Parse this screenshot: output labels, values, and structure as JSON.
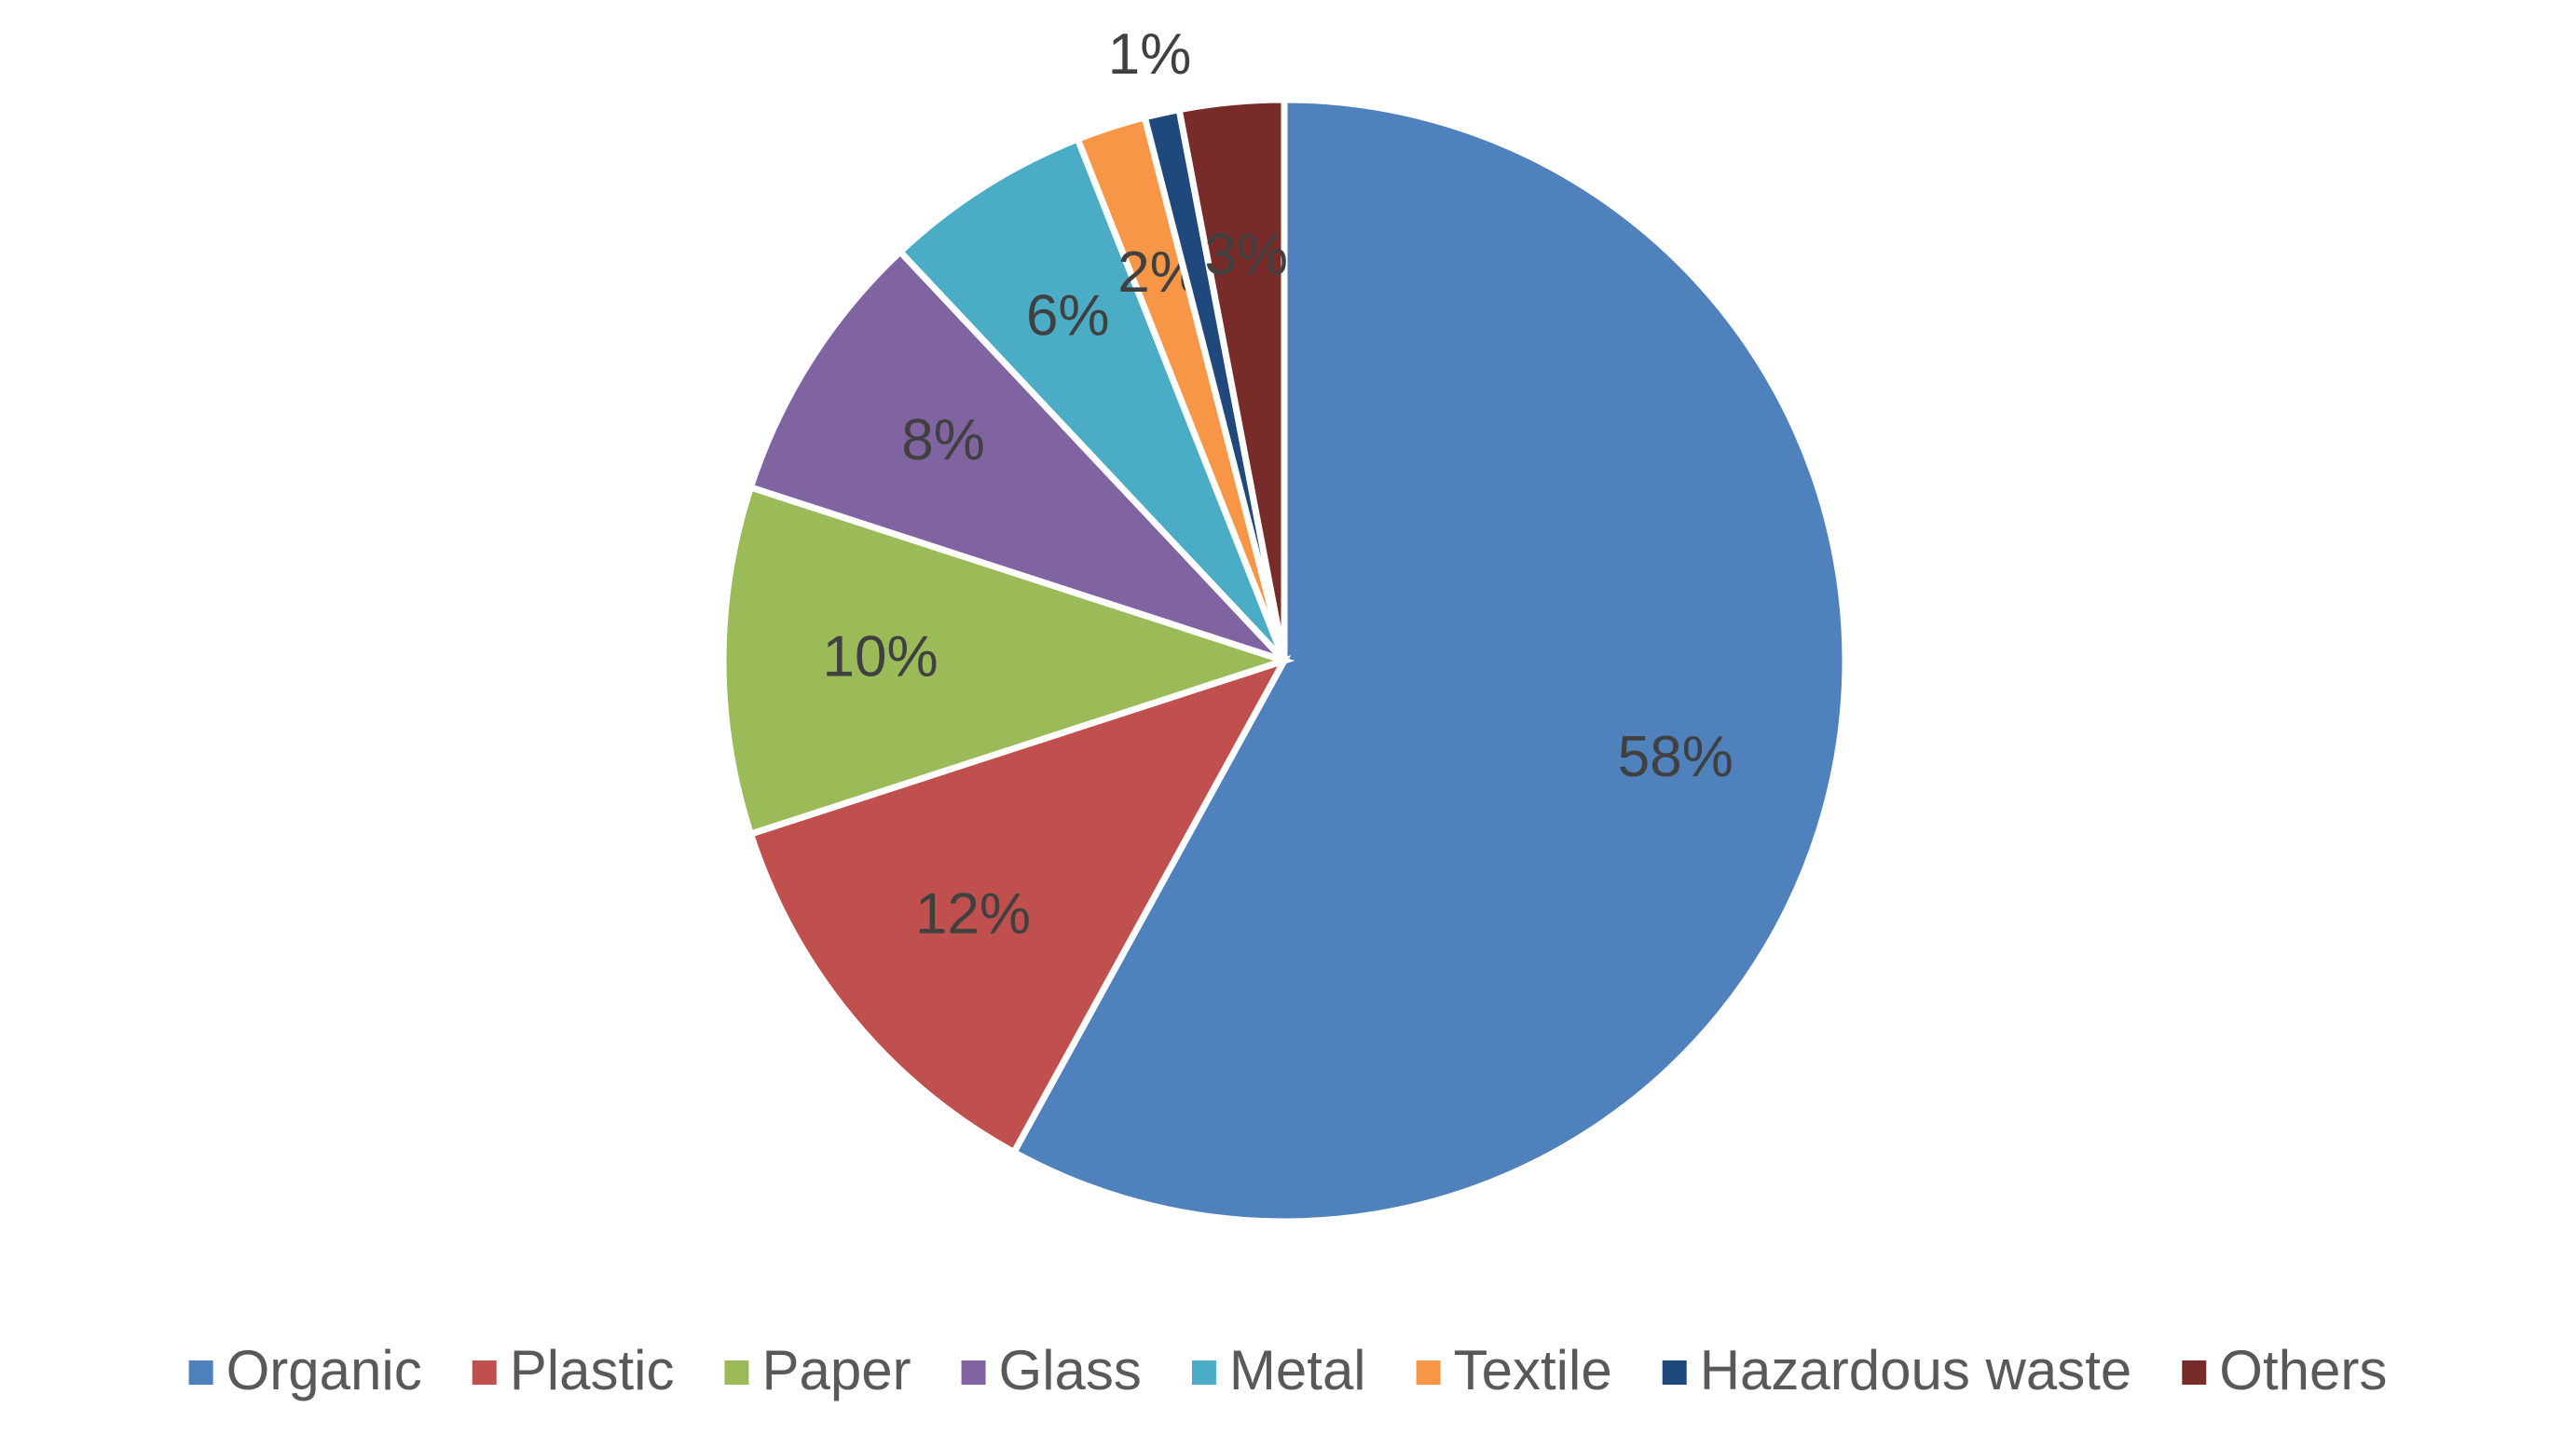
{
  "chart_data": {
    "type": "pie",
    "categories": [
      "Organic",
      "Plastic",
      "Paper",
      "Glass",
      "Metal",
      "Textile",
      "Hazardous waste",
      "Others"
    ],
    "values": [
      58,
      12,
      10,
      8,
      6,
      2,
      1,
      3
    ],
    "value_labels": [
      "58%",
      "12%",
      "10%",
      "8%",
      "6%",
      "2%",
      "1%",
      "3%"
    ],
    "colors": [
      "#4f81bd",
      "#c0504d",
      "#9bbb59",
      "#8064a2",
      "#4bacc6",
      "#f79646",
      "#1f497d",
      "#772c2a"
    ],
    "legend": "bottom"
  }
}
